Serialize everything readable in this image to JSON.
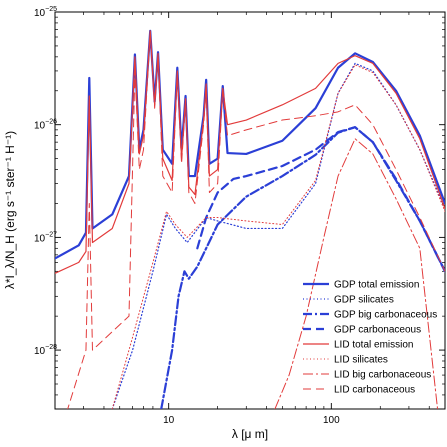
{
  "chart_data": {
    "type": "line",
    "title": "",
    "xlabel": "λ [μ m]",
    "ylabel": "λ*I_λ/N_H (erg s⁻¹ ster⁻¹ H⁻¹)",
    "x_scale": "log",
    "y_scale": "log",
    "xlim": [
      2,
      500
    ],
    "ylim": [
      3e-29,
      1e-25
    ],
    "x_ticks": [
      {
        "value": 10,
        "label": "10"
      },
      {
        "value": 100,
        "label": "100"
      }
    ],
    "y_ticks": [
      {
        "value": 1e-28,
        "label": "10",
        "exp": "−28"
      },
      {
        "value": 1e-27,
        "label": "10",
        "exp": "−27"
      },
      {
        "value": 1e-26,
        "label": "10",
        "exp": "−26"
      },
      {
        "value": 1e-25,
        "label": "10",
        "exp": "−25"
      }
    ],
    "legend_position": "bottom-right",
    "series": [
      {
        "name": "GDP total emission",
        "color": "#2b3fd6",
        "dash": "solid",
        "width": 2.2,
        "points": [
          [
            2,
            6.5e-28
          ],
          [
            2.8,
            8.5e-28
          ],
          [
            3.1,
            1.1e-27
          ],
          [
            3.25,
            2.6e-26
          ],
          [
            3.4,
            1.2e-27
          ],
          [
            4.5,
            1.6e-27
          ],
          [
            5.7,
            3.5e-27
          ],
          [
            6.2,
            4.2e-26
          ],
          [
            6.6,
            6e-27
          ],
          [
            7.0,
            9e-27
          ],
          [
            7.7,
            6.8e-26
          ],
          [
            8.2,
            1.6e-26
          ],
          [
            8.6,
            4.4e-26
          ],
          [
            9.2,
            6e-27
          ],
          [
            10.5,
            4.5e-27
          ],
          [
            11.3,
            3.2e-26
          ],
          [
            12.0,
            6e-27
          ],
          [
            12.7,
            1.8e-26
          ],
          [
            13.3,
            3.5e-27
          ],
          [
            14.5,
            3.5e-27
          ],
          [
            16.4,
            1.2e-26
          ],
          [
            17.0,
            2.5e-26
          ],
          [
            17.8,
            4.5e-27
          ],
          [
            20,
            5e-27
          ],
          [
            21.5,
            2.2e-26
          ],
          [
            23,
            5.6e-27
          ],
          [
            30,
            5.5e-27
          ],
          [
            50,
            7.2e-27
          ],
          [
            80,
            1.4e-26
          ],
          [
            110,
            3.2e-26
          ],
          [
            140,
            4.3e-26
          ],
          [
            180,
            3.6e-26
          ],
          [
            250,
            2e-26
          ],
          [
            350,
            8e-27
          ],
          [
            500,
            2e-27
          ]
        ]
      },
      {
        "name": "GDP silicates",
        "color": "#2b3fd6",
        "dash": "1,2.5",
        "width": 1.2,
        "points": [
          [
            4.5,
            3e-29
          ],
          [
            6,
            1e-28
          ],
          [
            8,
            5e-28
          ],
          [
            9.7,
            1.6e-27
          ],
          [
            11,
            1.2e-27
          ],
          [
            13,
            9e-28
          ],
          [
            17,
            1.5e-27
          ],
          [
            20,
            1.4e-27
          ],
          [
            30,
            1.2e-27
          ],
          [
            50,
            1.2e-27
          ],
          [
            80,
            3e-27
          ],
          [
            110,
            1.9e-26
          ],
          [
            140,
            3.5e-26
          ],
          [
            180,
            3e-26
          ],
          [
            250,
            1.5e-26
          ],
          [
            350,
            6e-27
          ],
          [
            500,
            1.8e-27
          ]
        ]
      },
      {
        "name": "GDP big carbonaceous",
        "color": "#2b3fd6",
        "dash": "9,3,2,3",
        "width": 2.2,
        "points": [
          [
            9,
            3e-29
          ],
          [
            10.5,
            1e-28
          ],
          [
            11.5,
            3e-28
          ],
          [
            12.5,
            5e-28
          ],
          [
            13.3,
            4.3e-28
          ],
          [
            15,
            5.5e-28
          ],
          [
            20,
            1.3e-27
          ],
          [
            30,
            2.3e-27
          ],
          [
            50,
            3.5e-27
          ],
          [
            80,
            5.4e-27
          ],
          [
            110,
            8.5e-27
          ],
          [
            140,
            9.5e-27
          ],
          [
            180,
            7e-27
          ],
          [
            250,
            3.2e-27
          ],
          [
            350,
            1.4e-27
          ],
          [
            500,
            5e-28
          ]
        ]
      },
      {
        "name": "GDP carbonaceous",
        "color": "#2b3fd6",
        "dash": "8,5",
        "width": 2.2,
        "points": [
          [
            15,
            8e-28
          ],
          [
            17,
            1.5e-27
          ],
          [
            20,
            2.5e-27
          ],
          [
            25,
            3.3e-27
          ],
          [
            30,
            3.5e-27
          ],
          [
            50,
            4.3e-27
          ],
          [
            80,
            6e-27
          ],
          [
            110,
            8.6e-27
          ],
          [
            140,
            9.5e-27
          ],
          [
            180,
            7e-27
          ],
          [
            250,
            3.3e-27
          ],
          [
            350,
            1.4e-27
          ],
          [
            500,
            5e-28
          ]
        ]
      },
      {
        "name": "LID total emission",
        "color": "#e23b3b",
        "dash": "solid",
        "width": 1.2,
        "points": [
          [
            2,
            4.8e-28
          ],
          [
            2.8,
            6e-28
          ],
          [
            3.1,
            7.5e-28
          ],
          [
            3.25,
            1.8e-26
          ],
          [
            3.4,
            9e-28
          ],
          [
            4.5,
            1.2e-27
          ],
          [
            5.7,
            3e-27
          ],
          [
            6.2,
            4e-26
          ],
          [
            6.6,
            5.5e-27
          ],
          [
            7.0,
            8e-27
          ],
          [
            7.7,
            6.8e-26
          ],
          [
            8.2,
            1.5e-26
          ],
          [
            8.6,
            4.3e-26
          ],
          [
            9.2,
            5e-27
          ],
          [
            10.5,
            3.2e-27
          ],
          [
            11.3,
            3e-26
          ],
          [
            12.0,
            5e-27
          ],
          [
            12.7,
            1.7e-26
          ],
          [
            13.3,
            2.8e-27
          ],
          [
            14.5,
            2.4e-27
          ],
          [
            16.4,
            1.1e-26
          ],
          [
            17.0,
            2.3e-26
          ],
          [
            17.8,
            3.5e-27
          ],
          [
            20,
            4e-27
          ],
          [
            21.5,
            2.1e-26
          ],
          [
            23,
            1e-26
          ],
          [
            30,
            1.1e-26
          ],
          [
            50,
            1.5e-26
          ],
          [
            80,
            2.1e-26
          ],
          [
            110,
            3.5e-26
          ],
          [
            140,
            4.1e-26
          ],
          [
            180,
            3.5e-26
          ],
          [
            250,
            1.9e-26
          ],
          [
            350,
            7.5e-27
          ],
          [
            500,
            1.8e-27
          ]
        ]
      },
      {
        "name": "LID silicates",
        "color": "#e23b3b",
        "dash": "1,2.5",
        "width": 1.0,
        "points": [
          [
            4.5,
            3e-29
          ],
          [
            6,
            1.3e-28
          ],
          [
            8,
            6e-28
          ],
          [
            9.7,
            1.7e-27
          ],
          [
            11,
            1.3e-27
          ],
          [
            13,
            1e-27
          ],
          [
            17,
            1.5e-27
          ],
          [
            20,
            1.5e-27
          ],
          [
            30,
            1.4e-27
          ],
          [
            50,
            1.3e-27
          ],
          [
            80,
            3.2e-27
          ],
          [
            110,
            1.9e-26
          ],
          [
            140,
            3.4e-26
          ],
          [
            180,
            2.9e-26
          ],
          [
            250,
            1.5e-26
          ],
          [
            350,
            6e-27
          ],
          [
            500,
            1.7e-27
          ]
        ]
      },
      {
        "name": "LID big carbonaceous",
        "color": "#e23b3b",
        "dash": "10,3,2,3",
        "width": 1.0,
        "points": [
          [
            45,
            3e-29
          ],
          [
            55,
            6e-29
          ],
          [
            70,
            2e-28
          ],
          [
            90,
            1e-27
          ],
          [
            110,
            3.5e-27
          ],
          [
            140,
            7.5e-27
          ],
          [
            180,
            5.5e-27
          ],
          [
            250,
            2.2e-27
          ],
          [
            350,
            8e-28
          ],
          [
            450,
            3e-29
          ]
        ]
      },
      {
        "name": "LID carbonaceous",
        "color": "#e23b3b",
        "dash": "8,5",
        "width": 1.0,
        "points": [
          [
            2,
            1.3e-29
          ],
          [
            3.1,
            1e-28
          ],
          [
            3.25,
            2e-27
          ],
          [
            3.4,
            1e-28
          ],
          [
            5.7,
            2e-28
          ],
          [
            6.2,
            3e-26
          ],
          [
            6.6,
            4e-27
          ],
          [
            7.0,
            6e-27
          ],
          [
            7.7,
            6.5e-26
          ],
          [
            8.2,
            1.4e-26
          ],
          [
            8.6,
            4e-26
          ],
          [
            9.2,
            3.5e-27
          ],
          [
            10.5,
            2.5e-27
          ],
          [
            11.3,
            2.8e-26
          ],
          [
            12.0,
            4.5e-27
          ],
          [
            12.7,
            1.6e-26
          ],
          [
            13.3,
            2.5e-27
          ],
          [
            14.5,
            2e-27
          ],
          [
            16.4,
            1e-26
          ],
          [
            17.0,
            2e-26
          ],
          [
            17.8,
            2.5e-27
          ],
          [
            20,
            3e-27
          ],
          [
            21.5,
            2e-26
          ],
          [
            23,
            8e-27
          ],
          [
            30,
            9e-27
          ],
          [
            50,
            1.1e-26
          ],
          [
            80,
            1.2e-26
          ],
          [
            110,
            1.3e-26
          ],
          [
            140,
            1.5e-26
          ],
          [
            180,
            1e-26
          ],
          [
            250,
            4e-27
          ],
          [
            350,
            1.5e-27
          ],
          [
            500,
            5e-28
          ]
        ]
      }
    ]
  }
}
